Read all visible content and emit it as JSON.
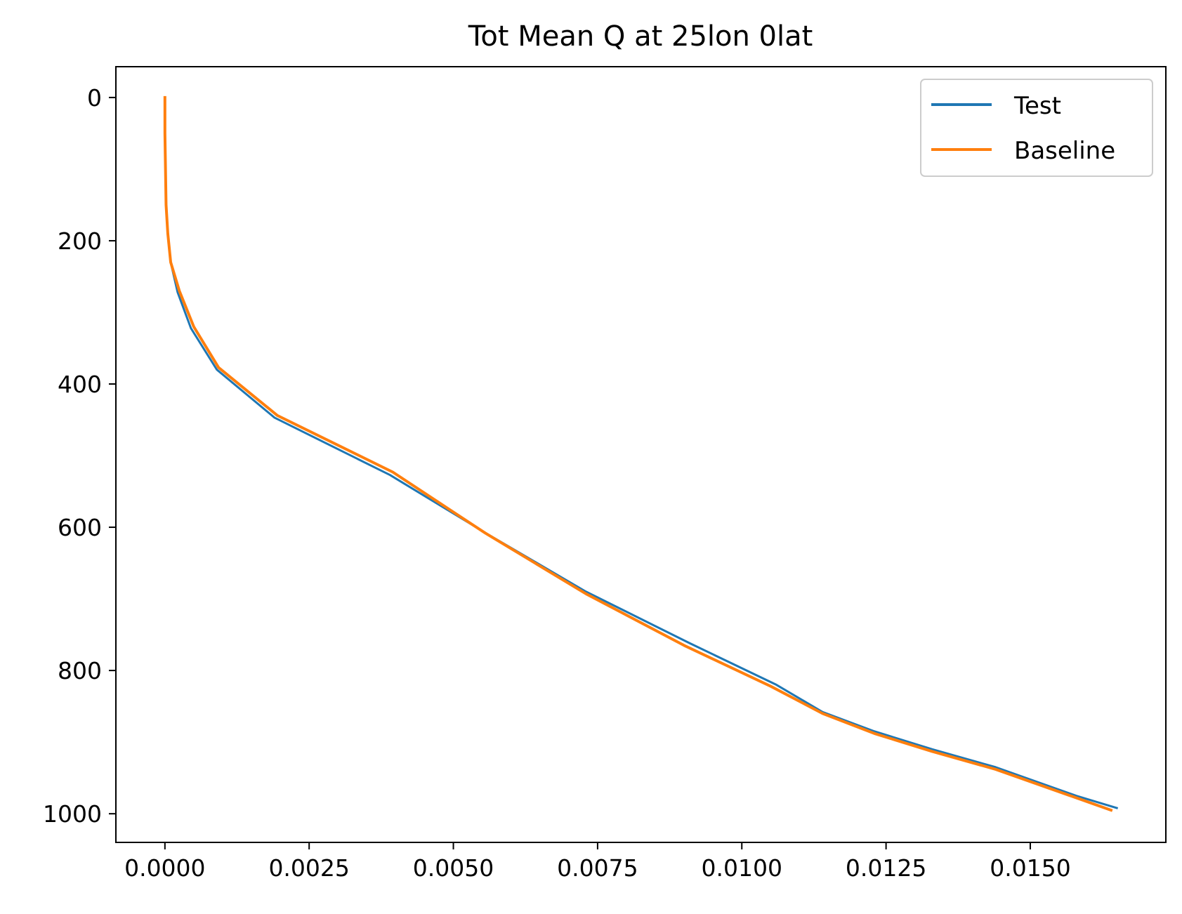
{
  "chart_data": {
    "type": "line",
    "title": "Tot Mean Q at 25lon 0lat",
    "xlabel": "",
    "ylabel": "",
    "xlim": [
      -0.00085,
      0.01735
    ],
    "ylim": [
      1040,
      -43
    ],
    "y_inverted": true,
    "x_ticks": [
      0.0,
      0.0025,
      0.005,
      0.0075,
      0.01,
      0.0125,
      0.015
    ],
    "x_tick_labels": [
      "0.0000",
      "0.0025",
      "0.0050",
      "0.0075",
      "0.0100",
      "0.0125",
      "0.0150"
    ],
    "y_ticks": [
      0,
      200,
      400,
      600,
      800,
      1000
    ],
    "y_tick_labels": [
      "0",
      "200",
      "400",
      "600",
      "800",
      "1000"
    ],
    "grid": false,
    "legend_position": "top-right",
    "series": [
      {
        "name": "Test",
        "color": "#1f77b4",
        "x": [
          0.0,
          0.0,
          1e-05,
          2e-05,
          5e-05,
          0.0001,
          0.00022,
          0.00045,
          0.0009,
          0.0019,
          0.0039,
          0.0056,
          0.0073,
          0.0091,
          0.0106,
          0.0114,
          0.0123,
          0.0133,
          0.0144,
          0.0158,
          0.0165
        ],
        "y": [
          0,
          50,
          100,
          150,
          190,
          230,
          272,
          322,
          380,
          447,
          527,
          610,
          690,
          762,
          820,
          858,
          885,
          910,
          935,
          975,
          992
        ]
      },
      {
        "name": "Baseline",
        "color": "#ff7f0e",
        "x": [
          0.0,
          0.0,
          1e-05,
          2e-05,
          5e-05,
          0.0001,
          0.00025,
          0.0005,
          0.00093,
          0.00195,
          0.00395,
          0.00555,
          0.0073,
          0.009,
          0.0105,
          0.0114,
          0.0123,
          0.0133,
          0.0144,
          0.0157,
          0.0164
        ],
        "y": [
          0,
          50,
          100,
          150,
          190,
          230,
          270,
          320,
          377,
          444,
          523,
          608,
          693,
          765,
          822,
          860,
          888,
          913,
          938,
          975,
          995
        ]
      }
    ]
  }
}
